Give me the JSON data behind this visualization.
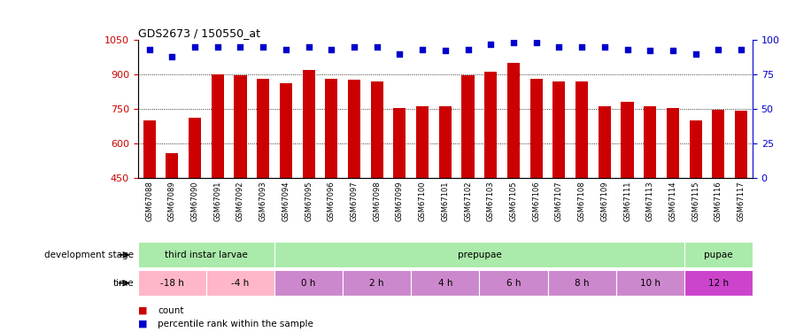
{
  "title": "GDS2673 / 150550_at",
  "samples": [
    "GSM67088",
    "GSM67089",
    "GSM67090",
    "GSM67091",
    "GSM67092",
    "GSM67093",
    "GSM67094",
    "GSM67095",
    "GSM67096",
    "GSM67097",
    "GSM67098",
    "GSM67099",
    "GSM67100",
    "GSM67101",
    "GSM67102",
    "GSM67103",
    "GSM67105",
    "GSM67106",
    "GSM67107",
    "GSM67108",
    "GSM67109",
    "GSM67111",
    "GSM67113",
    "GSM67114",
    "GSM67115",
    "GSM67116",
    "GSM67117"
  ],
  "counts": [
    700,
    555,
    710,
    900,
    895,
    880,
    860,
    920,
    880,
    875,
    870,
    755,
    760,
    760,
    895,
    910,
    950,
    880,
    870,
    870,
    760,
    780,
    760,
    755,
    700,
    745,
    740
  ],
  "percentiles": [
    93,
    88,
    95,
    95,
    95,
    95,
    93,
    95,
    93,
    95,
    95,
    90,
    93,
    92,
    93,
    97,
    98,
    98,
    95,
    95,
    95,
    93,
    92,
    92,
    90,
    93,
    93
  ],
  "ylim_left": [
    450,
    1050
  ],
  "ylim_right": [
    0,
    100
  ],
  "yticks_left": [
    450,
    600,
    750,
    900,
    1050
  ],
  "yticks_right": [
    0,
    25,
    50,
    75,
    100
  ],
  "bar_color": "#CC0000",
  "dot_color": "#0000CC",
  "grid_color": "#000000",
  "bg_color": "#ffffff",
  "xticklabel_bg": "#c8c8c8",
  "stage_defs": [
    {
      "label": "third instar larvae",
      "start": 0,
      "end": 6,
      "color": "#aaeaaa"
    },
    {
      "label": "prepupae",
      "start": 6,
      "end": 24,
      "color": "#aaeaaa"
    },
    {
      "label": "pupae",
      "start": 24,
      "end": 27,
      "color": "#aaeaaa"
    }
  ],
  "time_defs": [
    {
      "label": "-18 h",
      "start": 0,
      "end": 3,
      "color": "#ffb6c8"
    },
    {
      "label": "-4 h",
      "start": 3,
      "end": 6,
      "color": "#ffb6c8"
    },
    {
      "label": "0 h",
      "start": 6,
      "end": 9,
      "color": "#cc88cc"
    },
    {
      "label": "2 h",
      "start": 9,
      "end": 12,
      "color": "#cc88cc"
    },
    {
      "label": "4 h",
      "start": 12,
      "end": 15,
      "color": "#cc88cc"
    },
    {
      "label": "6 h",
      "start": 15,
      "end": 18,
      "color": "#cc88cc"
    },
    {
      "label": "8 h",
      "start": 18,
      "end": 21,
      "color": "#cc88cc"
    },
    {
      "label": "10 h",
      "start": 21,
      "end": 24,
      "color": "#cc88cc"
    },
    {
      "label": "12 h",
      "start": 24,
      "end": 27,
      "color": "#cc44cc"
    }
  ],
  "legend_items": [
    {
      "label": "count",
      "color": "#CC0000"
    },
    {
      "label": "percentile rank within the sample",
      "color": "#0000CC"
    }
  ]
}
